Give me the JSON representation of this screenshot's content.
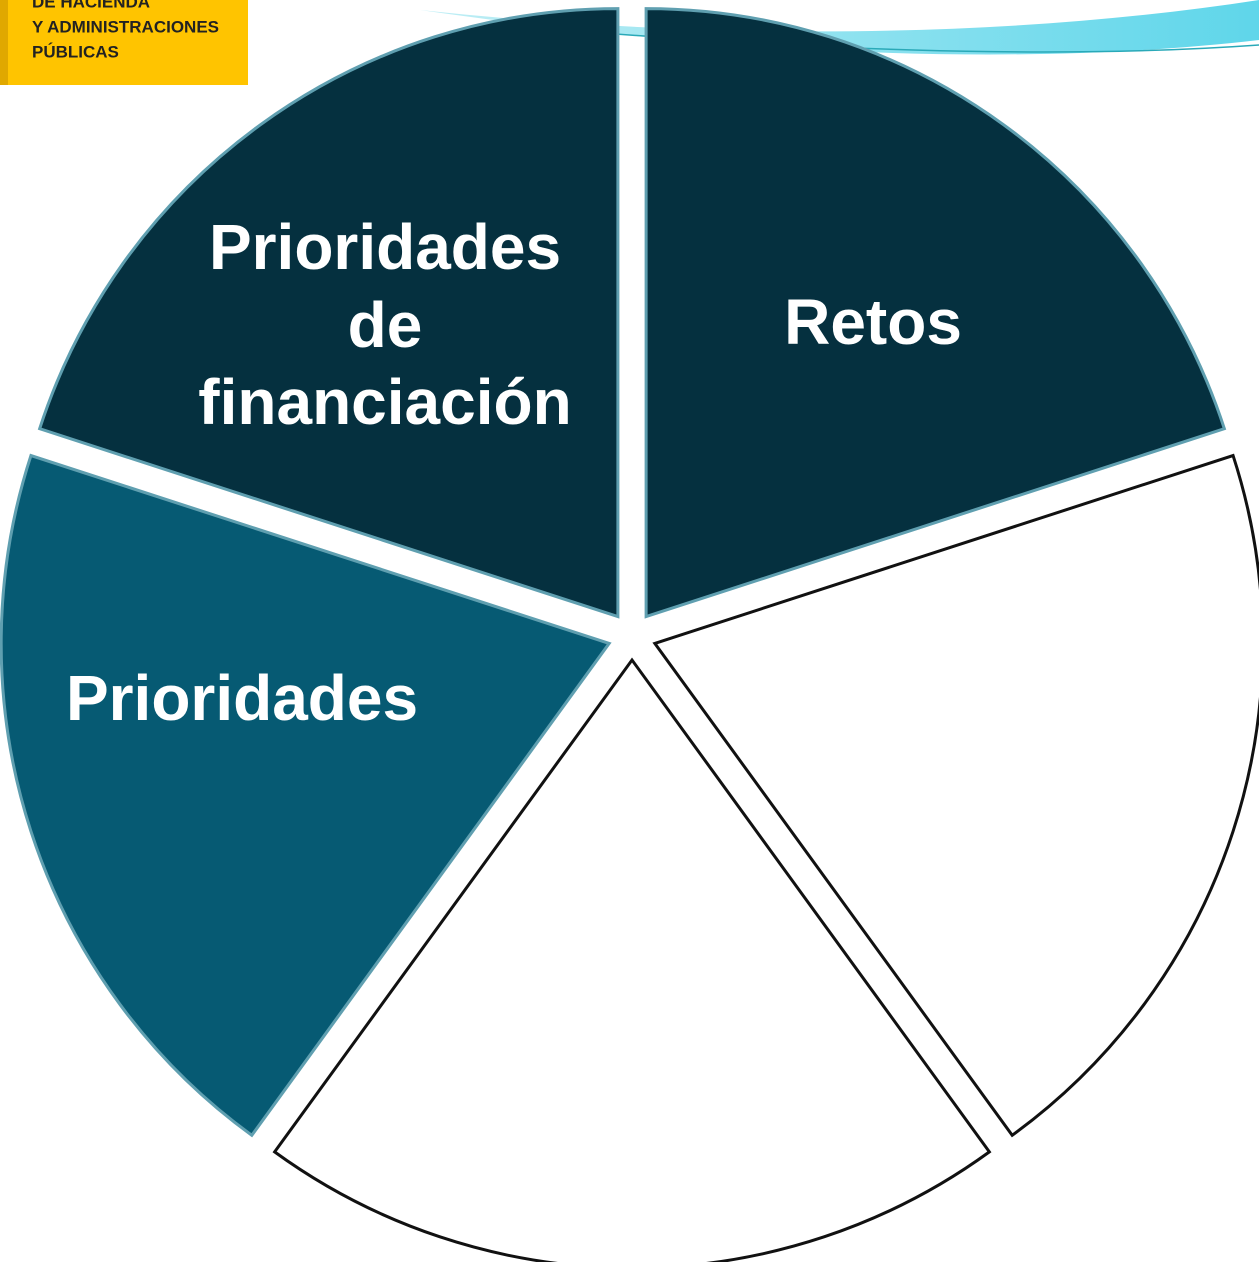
{
  "logo": {
    "lines": [
      "DE HACIENDA",
      "Y ADMINISTRACIONES",
      "PÚBLICAS"
    ]
  },
  "nodes": [
    {
      "lines": [
        "Prioridades",
        "de",
        "financiación"
      ]
    },
    {
      "lines": [
        "Retos"
      ]
    },
    {
      "lines": [
        "Prioridades"
      ]
    }
  ]
}
